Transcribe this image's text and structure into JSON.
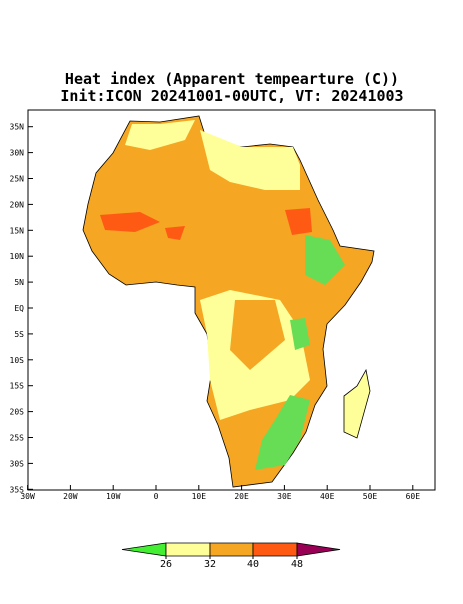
{
  "title": "Heat index (Apparent tempearture (C))",
  "subtitle": "Init:ICON 20241001-00UTC, VT: 20241003",
  "lat_ticks": [
    {
      "value": 35,
      "label": "35N"
    },
    {
      "value": 30,
      "label": "30N"
    },
    {
      "value": 25,
      "label": "25N"
    },
    {
      "value": 20,
      "label": "20N"
    },
    {
      "value": 15,
      "label": "15N"
    },
    {
      "value": 10,
      "label": "10N"
    },
    {
      "value": 5,
      "label": "5N"
    },
    {
      "value": 0,
      "label": "EQ"
    },
    {
      "value": -5,
      "label": "5S"
    },
    {
      "value": -10,
      "label": "10S"
    },
    {
      "value": -15,
      "label": "15S"
    },
    {
      "value": -20,
      "label": "20S"
    },
    {
      "value": -25,
      "label": "25S"
    },
    {
      "value": -30,
      "label": "30S"
    },
    {
      "value": -35,
      "label": "35S"
    }
  ],
  "lon_ticks": [
    {
      "value": -30,
      "label": "30W"
    },
    {
      "value": -20,
      "label": "20W"
    },
    {
      "value": -10,
      "label": "10W"
    },
    {
      "value": 0,
      "label": "0"
    },
    {
      "value": 10,
      "label": "10E"
    },
    {
      "value": 20,
      "label": "20E"
    },
    {
      "value": 30,
      "label": "30E"
    },
    {
      "value": 40,
      "label": "40E"
    },
    {
      "value": 50,
      "label": "50E"
    },
    {
      "value": 60,
      "label": "60E"
    }
  ],
  "colorbar": {
    "ticks": [
      26,
      32,
      40,
      48
    ],
    "colors": [
      "#44ee33",
      "#ffff99",
      "#f5a623",
      "#ff5a14",
      "#990055"
    ]
  }
}
